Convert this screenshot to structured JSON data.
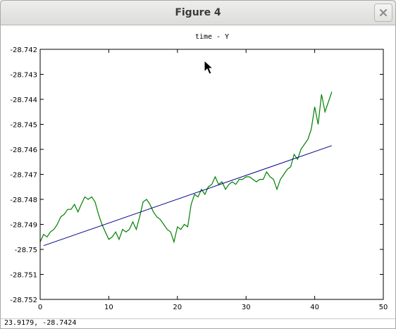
{
  "window": {
    "title": "Figure 4"
  },
  "icons": {
    "close": "close-icon",
    "cursor": "arrow-cursor-icon"
  },
  "status": {
    "coordinates": "23.9179, -28.7424"
  },
  "chart_data": {
    "type": "line",
    "title": "time - Y",
    "xlabel": "",
    "ylabel": "",
    "xlim": [
      0,
      50
    ],
    "ylim": [
      -28.752,
      -28.742
    ],
    "x_ticks": [
      0,
      10,
      20,
      30,
      40,
      50
    ],
    "y_ticks": [
      -28.742,
      -28.743,
      -28.744,
      -28.745,
      -28.746,
      -28.747,
      -28.748,
      -28.749,
      -28.75,
      -28.751,
      -28.752
    ],
    "x_tick_labels": [
      "0",
      "10",
      "20",
      "30",
      "40",
      "50"
    ],
    "y_tick_labels": [
      "-28.742",
      "-28.743",
      "-28.744",
      "-28.745",
      "-28.746",
      "-28.747",
      "-28.748",
      "-28.749",
      "-28.75",
      "-28.751",
      "-28.752"
    ],
    "grid": false,
    "series": [
      {
        "color": "#007f00",
        "x": [
          0,
          0.5,
          1,
          1.5,
          2,
          2.5,
          3,
          3.5,
          4,
          4.5,
          5,
          5.5,
          6,
          6.5,
          7,
          7.5,
          8,
          8.5,
          9,
          9.5,
          10,
          10.5,
          11,
          11.5,
          12,
          12.5,
          13,
          13.5,
          14,
          14.5,
          15,
          15.5,
          16,
          16.5,
          17,
          17.5,
          18,
          18.5,
          19,
          19.5,
          20,
          20.5,
          21,
          21.5,
          22,
          22.5,
          23,
          23.5,
          24,
          24.5,
          25,
          25.5,
          26,
          26.5,
          27,
          27.5,
          28,
          28.5,
          29,
          29.5,
          30,
          30.5,
          31,
          31.5,
          32,
          32.5,
          33,
          33.5,
          34,
          34.5,
          35,
          35.5,
          36,
          36.5,
          37,
          37.5,
          38,
          38.5,
          39,
          39.5,
          40,
          40.5,
          41,
          41.5,
          42,
          42.5
        ],
        "y": [
          -28.7497,
          -28.7494,
          -28.7495,
          -28.7493,
          -28.7492,
          -28.749,
          -28.7487,
          -28.7486,
          -28.7484,
          -28.7484,
          -28.7482,
          -28.7485,
          -28.7482,
          -28.7479,
          -28.748,
          -28.7479,
          -28.7481,
          -28.7486,
          -28.749,
          -28.7493,
          -28.7496,
          -28.7495,
          -28.7493,
          -28.7496,
          -28.7492,
          -28.7493,
          -28.7492,
          -28.7489,
          -28.7492,
          -28.7487,
          -28.7481,
          -28.748,
          -28.7482,
          -28.7485,
          -28.7487,
          -28.7488,
          -28.749,
          -28.7492,
          -28.7493,
          -28.7497,
          -28.7491,
          -28.7492,
          -28.749,
          -28.7491,
          -28.7482,
          -28.7478,
          -28.7479,
          -28.7476,
          -28.7478,
          -28.7475,
          -28.7474,
          -28.7471,
          -28.7474,
          -28.7473,
          -28.7476,
          -28.7474,
          -28.7473,
          -28.7474,
          -28.7472,
          -28.7472,
          -28.7471,
          -28.7471,
          -28.7472,
          -28.7473,
          -28.7472,
          -28.7472,
          -28.7469,
          -28.7471,
          -28.7472,
          -28.7476,
          -28.7472,
          -28.747,
          -28.7468,
          -28.7467,
          -28.7462,
          -28.7464,
          -28.746,
          -28.7458,
          -28.7456,
          -28.7452,
          -28.7443,
          -28.745,
          -28.7438,
          -28.7445,
          -28.7441,
          -28.7437
        ]
      },
      {
        "color": "#00008b",
        "x": [
          0.5,
          42.5
        ],
        "y": [
          -28.74985,
          -28.74585
        ]
      }
    ]
  }
}
